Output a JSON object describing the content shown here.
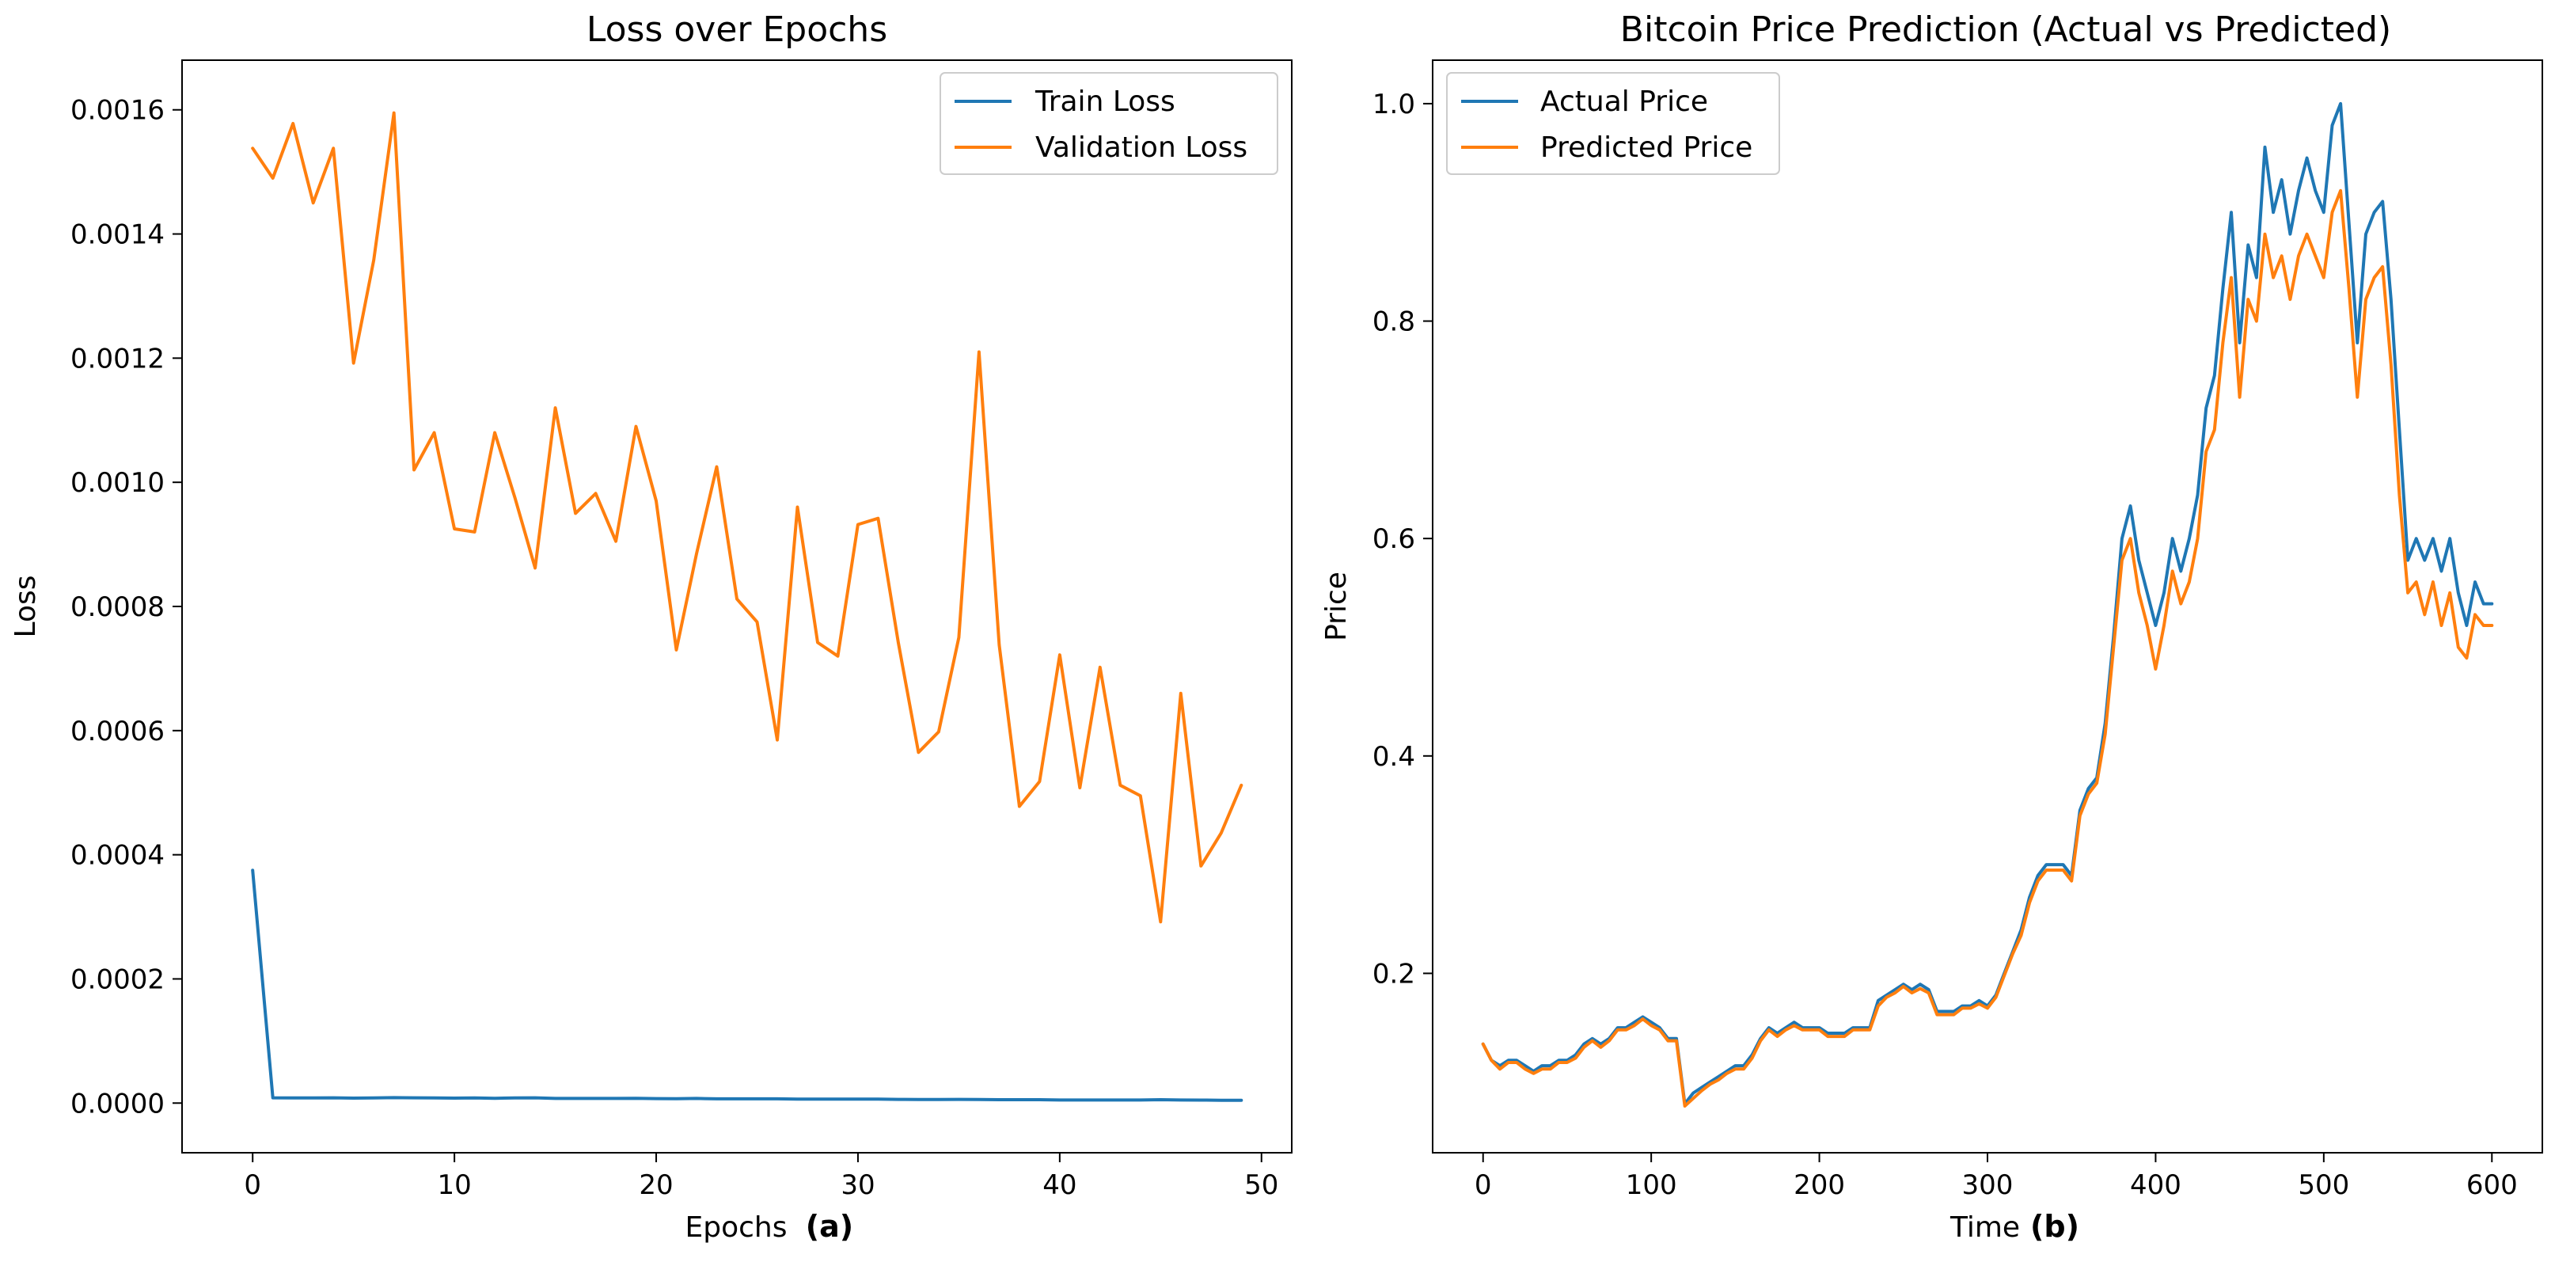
{
  "chart_data": [
    {
      "type": "line",
      "title": "Loss over Epochs",
      "xlabel": "Epochs",
      "sublabel": "(a)",
      "ylabel": "Loss",
      "xlim": [
        -3.5,
        51.5
      ],
      "ylim": [
        -8e-05,
        0.00168
      ],
      "xticks": [
        0,
        10,
        20,
        30,
        40,
        50
      ],
      "xtick_labels": [
        "0",
        "10",
        "20",
        "30",
        "40",
        "50"
      ],
      "yticks": [
        0,
        0.0002,
        0.0004,
        0.0006,
        0.0008,
        0.001,
        0.0012,
        0.0014,
        0.0016
      ],
      "ytick_labels": [
        "0.0000",
        "0.0002",
        "0.0004",
        "0.0006",
        "0.0008",
        "0.0010",
        "0.0012",
        "0.0014",
        "0.0016"
      ],
      "grid": false,
      "legend": "top-right",
      "x": [
        0,
        1,
        2,
        3,
        4,
        5,
        6,
        7,
        8,
        9,
        10,
        11,
        12,
        13,
        14,
        15,
        16,
        17,
        18,
        19,
        20,
        21,
        22,
        23,
        24,
        25,
        26,
        27,
        28,
        29,
        30,
        31,
        32,
        33,
        34,
        35,
        36,
        37,
        38,
        39,
        40,
        41,
        42,
        43,
        44,
        45,
        46,
        47,
        48,
        49
      ],
      "series": [
        {
          "name": "Train Loss",
          "color": "#1f77b4",
          "values": [
            0.000375,
            8.5e-06,
            8.2e-06,
            8.2e-06,
            8.5e-06,
            8e-06,
            8.2e-06,
            8.8e-06,
            8.5e-06,
            8.2e-06,
            8e-06,
            8.2e-06,
            7.8e-06,
            8.2e-06,
            8.5e-06,
            7.5e-06,
            7.5e-06,
            7.5e-06,
            7.5e-06,
            7.8e-06,
            7.2e-06,
            7e-06,
            7.5e-06,
            6.8e-06,
            6.8e-06,
            6.8e-06,
            6.8e-06,
            6.5e-06,
            6.5e-06,
            6.3e-06,
            6.3e-06,
            6.5e-06,
            6e-06,
            5.8e-06,
            5.8e-06,
            6e-06,
            5.8e-06,
            5.5e-06,
            5.5e-06,
            5.5e-06,
            5e-06,
            5e-06,
            5e-06,
            5e-06,
            5e-06,
            5.5e-06,
            5e-06,
            4.8e-06,
            4.5e-06,
            4.5e-06
          ]
        },
        {
          "name": "Validation Loss",
          "color": "#ff7f0e",
          "values": [
            0.001538,
            0.00149,
            0.001578,
            0.00145,
            0.001538,
            0.001192,
            0.001358,
            0.001595,
            0.00102,
            0.00108,
            0.000925,
            0.00092,
            0.00108,
            0.000975,
            0.000862,
            0.00112,
            0.00095,
            0.000982,
            0.000905,
            0.00109,
            0.00097,
            0.00073,
            0.000885,
            0.001025,
            0.000812,
            0.000775,
            0.000585,
            0.00096,
            0.000742,
            0.00072,
            0.000932,
            0.000942,
            0.000742,
            0.000565,
            0.000598,
            0.00075,
            0.00121,
            0.000738,
            0.000478,
            0.000518,
            0.000722,
            0.000508,
            0.000702,
            0.000512,
            0.000495,
            0.000292,
            0.00066,
            0.000382,
            0.000435,
            0.000512
          ]
        }
      ]
    },
    {
      "type": "line",
      "title": "Bitcoin Price Prediction (Actual vs Predicted)",
      "xlabel": "Time",
      "sublabel": "(b)",
      "ylabel": "Price",
      "xlim": [
        -30,
        630
      ],
      "ylim": [
        0.035,
        1.04
      ],
      "xticks": [
        0,
        100,
        200,
        300,
        400,
        500,
        600
      ],
      "xtick_labels": [
        "0",
        "100",
        "200",
        "300",
        "400",
        "500",
        "600"
      ],
      "yticks": [
        0.2,
        0.4,
        0.6,
        0.8,
        1.0
      ],
      "ytick_labels": [
        "0.2",
        "0.4",
        "0.6",
        "0.8",
        "1.0"
      ],
      "grid": false,
      "legend": "top-left",
      "x_start": 0,
      "x_step": 5,
      "series": [
        {
          "name": "Actual Price",
          "color": "#1f77b4",
          "values": [
            0.135,
            0.12,
            0.115,
            0.12,
            0.12,
            0.115,
            0.11,
            0.115,
            0.115,
            0.12,
            0.12,
            0.125,
            0.135,
            0.14,
            0.135,
            0.14,
            0.15,
            0.15,
            0.155,
            0.16,
            0.155,
            0.15,
            0.14,
            0.14,
            0.08,
            0.09,
            0.095,
            0.1,
            0.105,
            0.11,
            0.115,
            0.115,
            0.125,
            0.14,
            0.15,
            0.145,
            0.15,
            0.155,
            0.15,
            0.15,
            0.15,
            0.145,
            0.145,
            0.145,
            0.15,
            0.15,
            0.15,
            0.175,
            0.18,
            0.185,
            0.19,
            0.185,
            0.19,
            0.185,
            0.165,
            0.165,
            0.165,
            0.17,
            0.17,
            0.175,
            0.17,
            0.18,
            0.2,
            0.22,
            0.24,
            0.27,
            0.29,
            0.3,
            0.3,
            0.3,
            0.29,
            0.35,
            0.37,
            0.38,
            0.43,
            0.51,
            0.6,
            0.63,
            0.58,
            0.55,
            0.52,
            0.55,
            0.6,
            0.57,
            0.6,
            0.64,
            0.72,
            0.75,
            0.83,
            0.9,
            0.78,
            0.87,
            0.84,
            0.96,
            0.9,
            0.93,
            0.88,
            0.92,
            0.95,
            0.92,
            0.9,
            0.98,
            1.0,
            0.89,
            0.78,
            0.88,
            0.9,
            0.91,
            0.82,
            0.7,
            0.58,
            0.6,
            0.58,
            0.6,
            0.57,
            0.6,
            0.55,
            0.52,
            0.56,
            0.54,
            0.54
          ]
        },
        {
          "name": "Predicted Price",
          "color": "#ff7f0e",
          "values": [
            0.135,
            0.12,
            0.112,
            0.118,
            0.118,
            0.112,
            0.108,
            0.112,
            0.112,
            0.118,
            0.118,
            0.122,
            0.132,
            0.138,
            0.132,
            0.138,
            0.148,
            0.148,
            0.152,
            0.158,
            0.152,
            0.148,
            0.138,
            0.138,
            0.078,
            0.085,
            0.092,
            0.098,
            0.102,
            0.108,
            0.112,
            0.112,
            0.122,
            0.138,
            0.148,
            0.142,
            0.148,
            0.152,
            0.148,
            0.148,
            0.148,
            0.142,
            0.142,
            0.142,
            0.148,
            0.148,
            0.148,
            0.17,
            0.178,
            0.182,
            0.188,
            0.182,
            0.186,
            0.182,
            0.162,
            0.162,
            0.162,
            0.168,
            0.168,
            0.172,
            0.168,
            0.178,
            0.198,
            0.218,
            0.235,
            0.265,
            0.285,
            0.295,
            0.295,
            0.295,
            0.285,
            0.345,
            0.365,
            0.375,
            0.42,
            0.5,
            0.58,
            0.6,
            0.55,
            0.52,
            0.48,
            0.52,
            0.57,
            0.54,
            0.56,
            0.6,
            0.68,
            0.7,
            0.78,
            0.84,
            0.73,
            0.82,
            0.8,
            0.88,
            0.84,
            0.86,
            0.82,
            0.86,
            0.88,
            0.86,
            0.84,
            0.9,
            0.92,
            0.83,
            0.73,
            0.82,
            0.84,
            0.85,
            0.76,
            0.64,
            0.55,
            0.56,
            0.53,
            0.56,
            0.52,
            0.55,
            0.5,
            0.49,
            0.53,
            0.52,
            0.52
          ]
        }
      ]
    }
  ]
}
